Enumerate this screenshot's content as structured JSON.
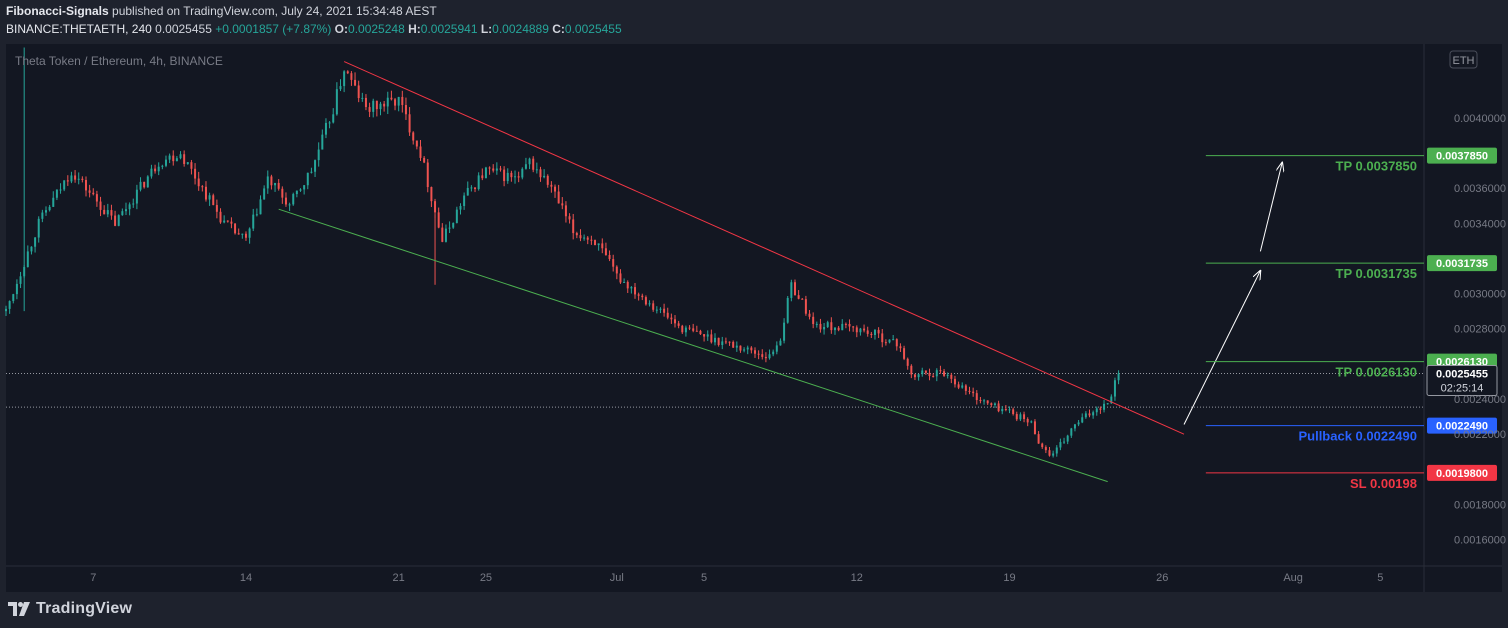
{
  "header": {
    "author": "Fibonacci-Signals",
    "published_text": "published on TradingView.com, July 24, 2021 15:34:48 AEST",
    "symbol": "BINANCE:THETAETH, 240",
    "last": "0.0025455",
    "change": "+0.0001857 (+7.87%)",
    "o_label": "O:",
    "o_value": "0.0025248",
    "h_label": "H:",
    "h_value": "0.0025941",
    "l_label": "L:",
    "l_value": "0.0024889",
    "c_label": "C:",
    "c_value": "0.0025455"
  },
  "footer": {
    "brand": "TradingView"
  },
  "chart_data": {
    "type": "candlestick",
    "title": "Theta Token / Ethereum, 4h, BINANCE",
    "currency_badge": "ETH",
    "x_ticks": [
      "7",
      "14",
      "21",
      "25",
      "Jul",
      "5",
      "12",
      "19",
      "26",
      "Aug",
      "5"
    ],
    "y_ticks": [
      "0.0040000",
      "0.0036000",
      "0.0034000",
      "0.0030000",
      "0.0028000",
      "0.0024000",
      "0.0022000",
      "0.0018000",
      "0.0016000"
    ],
    "y_range": [
      0.00145,
      0.00442
    ],
    "x_range": [
      "2021-06-03",
      "2021-08-07"
    ],
    "current_price": {
      "value": 0.0025455,
      "label": "0.0025455",
      "countdown": "02:25:14"
    },
    "level_tags": [
      {
        "value": 0.003785,
        "label": "0.0037850",
        "color": "#4caf50"
      },
      {
        "value": 0.00317353,
        "label": "0.0031735",
        "color": "#4caf50"
      },
      {
        "value": 0.002613,
        "label": "0.0026130",
        "color": "#4caf50"
      },
      {
        "value": 0.002249,
        "label": "0.0022490",
        "color": "#2962ff"
      },
      {
        "value": 0.00198,
        "label": "0.0019800",
        "color": "#f23645"
      }
    ],
    "annotations": [
      {
        "text": "TP 0.0037850",
        "value": 0.003785,
        "color": "#4caf50"
      },
      {
        "text": "TP 0.0031735",
        "value": 0.0031735,
        "color": "#4caf50"
      },
      {
        "text": "TP 0.0026130",
        "value": 0.002613,
        "color": "#4caf50"
      },
      {
        "text": "Pullback 0.0022490",
        "value": 0.002249,
        "color": "#2962ff"
      },
      {
        "text": "SL 0.00198",
        "value": 0.00198,
        "color": "#f23645"
      }
    ],
    "trendlines": [
      {
        "name": "upper",
        "color": "#f23645",
        "from": [
          "2021-06-18 12:00",
          0.00432
        ],
        "to": [
          "2021-07-27 00:00",
          0.0022
        ]
      },
      {
        "name": "lower",
        "color": "#4caf50",
        "from": [
          "2021-06-15 12:00",
          0.00348
        ],
        "to": [
          "2021-07-23 12:00",
          0.00193
        ]
      }
    ],
    "path_key_points": [
      [
        "2021-06-03",
        0.0029
      ],
      [
        "2021-06-04 12:00",
        0.0034
      ],
      [
        "2021-06-06",
        0.0037
      ],
      [
        "2021-06-08",
        0.0034
      ],
      [
        "2021-06-10",
        0.00375
      ],
      [
        "2021-06-11",
        0.0038
      ],
      [
        "2021-06-13",
        0.0034
      ],
      [
        "2021-06-14",
        0.0033
      ],
      [
        "2021-06-15",
        0.00365
      ],
      [
        "2021-06-16",
        0.0035
      ],
      [
        "2021-06-17",
        0.0037
      ],
      [
        "2021-06-18",
        0.00405
      ],
      [
        "2021-06-18 12:00",
        0.00428
      ],
      [
        "2021-06-19 12:00",
        0.00405
      ],
      [
        "2021-06-21",
        0.0041
      ],
      [
        "2021-06-22",
        0.0038
      ],
      [
        "2021-06-23",
        0.0033
      ],
      [
        "2021-06-24",
        0.00355
      ],
      [
        "2021-06-25",
        0.0037
      ],
      [
        "2021-06-26 12:00",
        0.00365
      ],
      [
        "2021-06-27",
        0.00375
      ],
      [
        "2021-06-28",
        0.0036
      ],
      [
        "2021-06-29",
        0.00335
      ],
      [
        "2021-06-30",
        0.0033
      ],
      [
        "2021-07-01",
        0.0031
      ],
      [
        "2021-07-02",
        0.003
      ],
      [
        "2021-07-03",
        0.0029
      ],
      [
        "2021-07-04",
        0.0028
      ],
      [
        "2021-07-06",
        0.00272
      ],
      [
        "2021-07-07",
        0.00268
      ],
      [
        "2021-07-08",
        0.00264
      ],
      [
        "2021-07-08 12:00",
        0.00275
      ],
      [
        "2021-07-09",
        0.00305
      ],
      [
        "2021-07-09 12:00",
        0.00295
      ],
      [
        "2021-07-10",
        0.00282
      ],
      [
        "2021-07-12",
        0.0028
      ],
      [
        "2021-07-13",
        0.00276
      ],
      [
        "2021-07-14",
        0.0027
      ],
      [
        "2021-07-14 12:00",
        0.00252
      ],
      [
        "2021-07-15",
        0.00255
      ],
      [
        "2021-07-16",
        0.00255
      ],
      [
        "2021-07-17",
        0.00245
      ],
      [
        "2021-07-18",
        0.00237
      ],
      [
        "2021-07-19",
        0.00233
      ],
      [
        "2021-07-20",
        0.00226
      ],
      [
        "2021-07-20 12:00",
        0.00212
      ],
      [
        "2021-07-21",
        0.00208
      ],
      [
        "2021-07-22",
        0.00225
      ],
      [
        "2021-07-23",
        0.00235
      ],
      [
        "2021-07-23 12:00",
        0.00238
      ],
      [
        "2021-07-24",
        0.00255
      ]
    ]
  }
}
